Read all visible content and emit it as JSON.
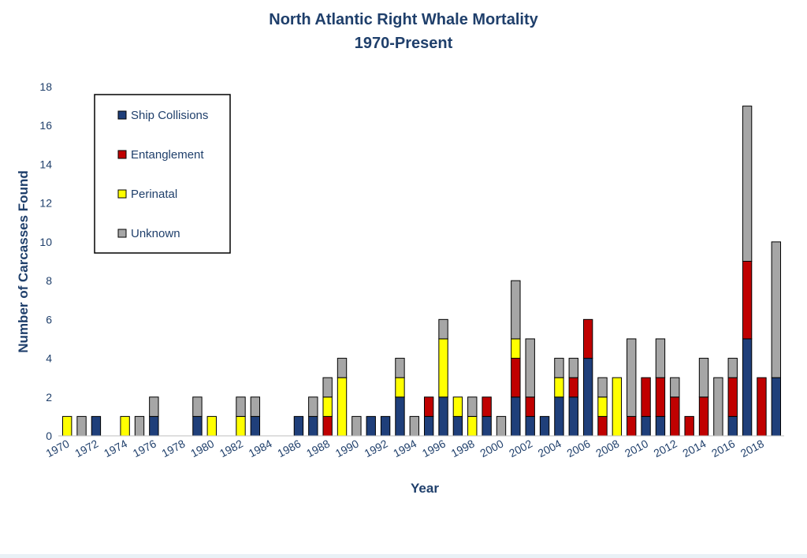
{
  "chart_data": {
    "type": "bar",
    "stacked": true,
    "title": "North Atlantic Right Whale Mortality",
    "subtitle": "1970-Present",
    "xlabel": "Year",
    "ylabel": "Number of Carcasses Found",
    "ylim": [
      0,
      18
    ],
    "yticks": [
      0,
      2,
      4,
      6,
      8,
      10,
      12,
      14,
      16,
      18
    ],
    "grid": false,
    "legend_position": "top-left",
    "categories": [
      1970,
      1971,
      1972,
      1973,
      1974,
      1975,
      1976,
      1977,
      1978,
      1979,
      1980,
      1981,
      1982,
      1983,
      1984,
      1985,
      1986,
      1987,
      1988,
      1989,
      1990,
      1991,
      1992,
      1993,
      1994,
      1995,
      1996,
      1997,
      1998,
      1999,
      2000,
      2001,
      2002,
      2003,
      2004,
      2005,
      2006,
      2007,
      2008,
      2009,
      2010,
      2011,
      2012,
      2013,
      2014,
      2015,
      2016,
      2017,
      2018,
      2019
    ],
    "xtick_labels": [
      "1970",
      "1972",
      "1974",
      "1976",
      "1978",
      "1980",
      "1982",
      "1984",
      "1986",
      "1988",
      "1990",
      "1992",
      "1994",
      "1996",
      "1998",
      "2000",
      "2002",
      "2004",
      "2006",
      "2008",
      "2010",
      "2012",
      "2014",
      "2016",
      "2018"
    ],
    "series": [
      {
        "name": "Ship Collisions",
        "color": "#1f3f7a",
        "values": [
          0,
          0,
          1,
          0,
          0,
          0,
          1,
          0,
          0,
          1,
          0,
          0,
          0,
          1,
          0,
          0,
          1,
          1,
          0,
          0,
          0,
          1,
          1,
          2,
          0,
          1,
          2,
          1,
          0,
          1,
          0,
          2,
          1,
          1,
          2,
          2,
          4,
          0,
          0,
          0,
          1,
          1,
          0,
          0,
          0,
          0,
          1,
          5,
          0,
          3
        ]
      },
      {
        "name": "Entanglement",
        "color": "#c00000",
        "values": [
          0,
          0,
          0,
          0,
          0,
          0,
          0,
          0,
          0,
          0,
          0,
          0,
          0,
          0,
          0,
          0,
          0,
          0,
          1,
          0,
          0,
          0,
          0,
          0,
          0,
          1,
          0,
          0,
          0,
          1,
          0,
          2,
          1,
          0,
          0,
          1,
          2,
          1,
          0,
          1,
          2,
          2,
          2,
          1,
          2,
          0,
          2,
          4,
          3,
          0
        ]
      },
      {
        "name": "Perinatal",
        "color": "#ffff00",
        "values": [
          1,
          0,
          0,
          0,
          1,
          0,
          0,
          0,
          0,
          0,
          1,
          0,
          1,
          0,
          0,
          0,
          0,
          0,
          1,
          3,
          0,
          0,
          0,
          1,
          0,
          0,
          3,
          1,
          1,
          0,
          0,
          1,
          0,
          0,
          1,
          0,
          0,
          1,
          3,
          0,
          0,
          0,
          0,
          0,
          0,
          0,
          0,
          0,
          0,
          0
        ]
      },
      {
        "name": "Unknown",
        "color": "#a6a6a6",
        "values": [
          0,
          1,
          0,
          0,
          0,
          1,
          1,
          0,
          0,
          1,
          0,
          0,
          1,
          1,
          0,
          0,
          0,
          1,
          1,
          1,
          1,
          0,
          0,
          1,
          1,
          0,
          1,
          0,
          1,
          0,
          1,
          3,
          3,
          0,
          1,
          1,
          0,
          1,
          0,
          4,
          0,
          2,
          1,
          0,
          2,
          3,
          1,
          8,
          0,
          7
        ]
      }
    ]
  }
}
